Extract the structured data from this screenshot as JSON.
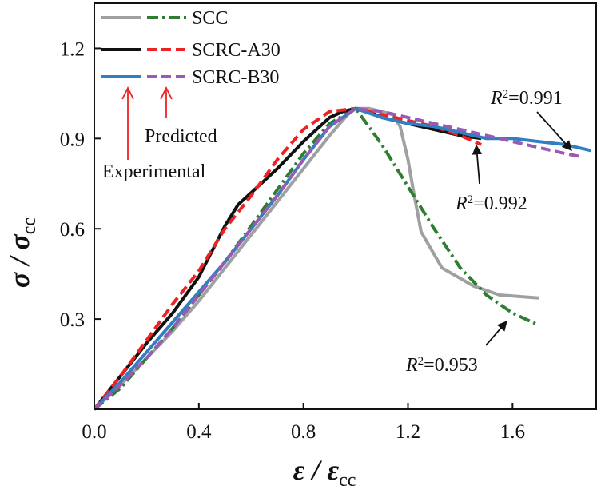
{
  "chart_data": {
    "type": "line",
    "title": "",
    "xlabel": {
      "main": "ε / ε",
      "sub": "cc"
    },
    "ylabel": {
      "main": "σ / σ",
      "sub": "cc"
    },
    "xlim": [
      0.0,
      1.92
    ],
    "ylim": [
      0.0,
      1.35
    ],
    "xticks": [
      0.0,
      0.4,
      0.8,
      1.2,
      1.6
    ],
    "yticks": [
      0.3,
      0.6,
      0.9,
      1.2
    ],
    "xtick_labels": [
      "0.0",
      "0.4",
      "0.8",
      "1.2",
      "1.6"
    ],
    "ytick_labels": [
      "0.3",
      "0.6",
      "0.9",
      "1.2"
    ],
    "legend_position": "top-left",
    "legend": [
      {
        "label": "SCC",
        "experimental_color": "#a0a0a0",
        "predicted_color": "#2e7d32"
      },
      {
        "label": "SCRC-A30",
        "experimental_color": "#111111",
        "predicted_color": "#ee2222"
      },
      {
        "label": "SCRC-B30",
        "experimental_color": "#2f7fc1",
        "predicted_color": "#9b59b6"
      }
    ],
    "legend_notes": {
      "experimental": "Experimental",
      "predicted": "Predicted"
    },
    "series": [
      {
        "name": "SCC experimental",
        "color": "#a0a0a0",
        "dash": "solid",
        "x": [
          0.0,
          0.1,
          0.2,
          0.3,
          0.4,
          0.5,
          0.6,
          0.7,
          0.8,
          0.9,
          0.97,
          1.0,
          1.05,
          1.1,
          1.14,
          1.17,
          1.2,
          1.22,
          1.25,
          1.33,
          1.45,
          1.55,
          1.7
        ],
        "y": [
          0.0,
          0.08,
          0.17,
          0.26,
          0.36,
          0.47,
          0.58,
          0.69,
          0.8,
          0.91,
          0.98,
          1.0,
          1.0,
          0.99,
          0.98,
          0.94,
          0.83,
          0.73,
          0.59,
          0.47,
          0.41,
          0.38,
          0.37
        ]
      },
      {
        "name": "SCC predicted",
        "color": "#2e7d32",
        "dash": "dashdot",
        "x": [
          0.0,
          0.1,
          0.2,
          0.3,
          0.4,
          0.5,
          0.6,
          0.7,
          0.8,
          0.9,
          1.0,
          1.1,
          1.2,
          1.3,
          1.4,
          1.5,
          1.6,
          1.7
        ],
        "y": [
          0.0,
          0.07,
          0.17,
          0.27,
          0.38,
          0.49,
          0.61,
          0.73,
          0.85,
          0.95,
          1.0,
          0.88,
          0.74,
          0.6,
          0.47,
          0.38,
          0.32,
          0.28
        ]
      },
      {
        "name": "SCRC-A30 experimental",
        "color": "#111111",
        "dash": "solid",
        "x": [
          0.0,
          0.1,
          0.2,
          0.3,
          0.4,
          0.5,
          0.55,
          0.6,
          0.7,
          0.8,
          0.9,
          0.95,
          1.0,
          1.05,
          1.1,
          1.2,
          1.3,
          1.4,
          1.48
        ],
        "y": [
          0.0,
          0.11,
          0.22,
          0.32,
          0.44,
          0.61,
          0.68,
          0.72,
          0.8,
          0.89,
          0.97,
          0.99,
          1.0,
          0.99,
          0.97,
          0.95,
          0.93,
          0.91,
          0.9
        ]
      },
      {
        "name": "SCRC-A30 predicted",
        "color": "#ee2222",
        "dash": "dashed",
        "x": [
          0.0,
          0.1,
          0.2,
          0.3,
          0.4,
          0.5,
          0.6,
          0.7,
          0.8,
          0.9,
          1.0,
          1.1,
          1.2,
          1.3,
          1.4,
          1.48
        ],
        "y": [
          0.0,
          0.11,
          0.23,
          0.35,
          0.46,
          0.6,
          0.71,
          0.83,
          0.93,
          0.99,
          1.0,
          0.98,
          0.96,
          0.94,
          0.91,
          0.88
        ]
      },
      {
        "name": "SCRC-B30 experimental",
        "color": "#2f7fc1",
        "dash": "solid",
        "x": [
          0.0,
          0.1,
          0.2,
          0.3,
          0.4,
          0.5,
          0.6,
          0.7,
          0.8,
          0.9,
          1.0,
          1.1,
          1.2,
          1.3,
          1.4,
          1.5,
          1.6,
          1.7,
          1.8,
          1.9
        ],
        "y": [
          0.0,
          0.09,
          0.19,
          0.29,
          0.39,
          0.49,
          0.6,
          0.71,
          0.83,
          0.94,
          1.0,
          0.97,
          0.95,
          0.94,
          0.92,
          0.9,
          0.9,
          0.89,
          0.88,
          0.86
        ]
      },
      {
        "name": "SCRC-B30 predicted",
        "color": "#9b59b6",
        "dash": "dashed",
        "x": [
          0.0,
          0.1,
          0.2,
          0.3,
          0.4,
          0.5,
          0.6,
          0.7,
          0.8,
          0.9,
          1.0,
          1.1,
          1.2,
          1.3,
          1.4,
          1.5,
          1.6,
          1.7,
          1.8,
          1.86
        ],
        "y": [
          0.0,
          0.08,
          0.17,
          0.27,
          0.38,
          0.49,
          0.6,
          0.71,
          0.83,
          0.94,
          1.0,
          0.99,
          0.97,
          0.95,
          0.93,
          0.91,
          0.89,
          0.87,
          0.85,
          0.84
        ]
      }
    ],
    "annotations": [
      {
        "prefix": "R",
        "sup": "2",
        "suffix": "=0.991",
        "text": "R²=0.991",
        "target": [
          1.84,
          0.85
        ]
      },
      {
        "prefix": "R",
        "sup": "2",
        "suffix": "=0.992",
        "text": "R²=0.992",
        "target": [
          1.47,
          0.89
        ]
      },
      {
        "prefix": "R",
        "sup": "2",
        "suffix": "=0.953",
        "text": "R²=0.953",
        "target": [
          1.64,
          0.32
        ]
      }
    ],
    "colors": {
      "axis": "#111111",
      "note_arrow": "#ee2222",
      "annotation_arrow": "#111111"
    }
  }
}
